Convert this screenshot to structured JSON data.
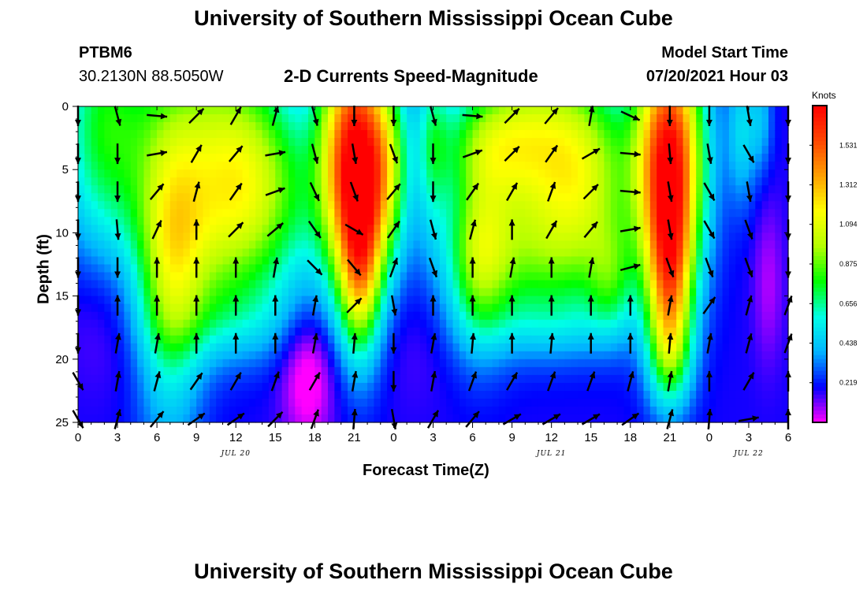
{
  "header": {
    "title": "University of Southern Mississippi Ocean Cube",
    "station": "PTBM6",
    "coords": "30.2130N  88.5050W",
    "subtitle": "2-D Currents Speed-Magnitude",
    "model_label": "Model Start Time",
    "model_time": "07/20/2021 Hour 03"
  },
  "footer": {
    "title": "University of Southern Mississippi Ocean Cube"
  },
  "colors": {
    "scale": [
      "#ff00ff",
      "#0000ff",
      "#00b4ff",
      "#00ffe6",
      "#00ff00",
      "#b4ff00",
      "#ffff00",
      "#ffa000",
      "#ff4600",
      "#ff0000"
    ],
    "arrow": "#000000",
    "background": "#ffffff"
  },
  "chart_data": {
    "type": "heatmap",
    "title": "2-D Currents Speed-Magnitude",
    "xlabel": "Forecast Time(Z)",
    "ylabel": "Depth (ft)",
    "x_hours": [
      0,
      54
    ],
    "x_tick_hours": [
      0,
      3,
      6,
      9,
      12,
      15,
      18,
      21,
      24,
      27,
      30,
      33,
      36,
      39,
      42,
      45,
      48,
      51,
      54
    ],
    "x_tick_labels": [
      "0",
      "3",
      "6",
      "9",
      "12",
      "15",
      "18",
      "21",
      "0",
      "3",
      "6",
      "9",
      "12",
      "15",
      "18",
      "21",
      "0",
      "3",
      "6"
    ],
    "date_labels": [
      {
        "hour": 12,
        "label": "JUL 20"
      },
      {
        "hour": 36,
        "label": "JUL 21"
      },
      {
        "hour": 51,
        "label": "JUL 22"
      }
    ],
    "ylim": [
      0,
      25
    ],
    "y_ticks": [
      0,
      5,
      10,
      15,
      20,
      25
    ],
    "y_tick_labels": [
      "0",
      "5",
      "10",
      "15",
      "20",
      "25"
    ],
    "colorbar": {
      "unit": "Knots",
      "range": [
        0,
        1.75
      ],
      "ticks": [
        0.219,
        0.438,
        0.656,
        0.875,
        1.094,
        1.312,
        1.531
      ],
      "tick_labels": [
        "0.219",
        "0.438",
        "0.656",
        "0.875",
        "1.094",
        "1.312",
        "1.531"
      ]
    },
    "speed_model": {
      "background_knots": 0.18,
      "blobs": [
        {
          "h": 2.0,
          "d": 1.5,
          "sh": 2.5,
          "sd": 7.0,
          "amp": 0.55
        },
        {
          "h": 2.5,
          "d": 16.0,
          "sh": 2.5,
          "sd": 4.0,
          "amp": -0.12
        },
        {
          "h": 7.0,
          "d": 13.0,
          "sh": 1.8,
          "sd": 9.0,
          "amp": 0.55
        },
        {
          "h": 11.0,
          "d": 2.0,
          "sh": 4.0,
          "sd": 5.5,
          "amp": 0.7
        },
        {
          "h": 11.0,
          "d": 11.0,
          "sh": 4.5,
          "sd": 4.5,
          "amp": 0.55
        },
        {
          "h": 14.0,
          "d": 6.0,
          "sh": 3.0,
          "sd": 4.0,
          "amp": 0.25
        },
        {
          "h": 11.0,
          "d": 17.0,
          "sh": 4.5,
          "sd": 2.5,
          "amp": 0.2
        },
        {
          "h": 17.5,
          "d": 21.0,
          "sh": 1.4,
          "sd": 4.0,
          "amp": -0.25
        },
        {
          "h": 21.0,
          "d": 4.0,
          "sh": 1.8,
          "sd": 7.0,
          "amp": 1.5
        },
        {
          "h": 21.5,
          "d": 13.0,
          "sh": 1.1,
          "sd": 5.0,
          "amp": 0.7
        },
        {
          "h": 23.5,
          "d": 5.0,
          "sh": 1.2,
          "sd": 5.0,
          "amp": 0.5
        },
        {
          "h": 27.0,
          "d": 3.0,
          "sh": 0.9,
          "sd": 5.0,
          "amp": 0.35
        },
        {
          "h": 25.5,
          "d": 18.0,
          "sh": 2.0,
          "sd": 4.0,
          "amp": -0.05
        },
        {
          "h": 30.5,
          "d": 12.0,
          "sh": 1.6,
          "sd": 5.0,
          "amp": 0.5
        },
        {
          "h": 31.0,
          "d": 3.0,
          "sh": 2.5,
          "sd": 3.0,
          "amp": 0.3
        },
        {
          "h": 35.0,
          "d": 2.5,
          "sh": 4.0,
          "sd": 5.0,
          "amp": 0.8
        },
        {
          "h": 35.0,
          "d": 12.0,
          "sh": 4.5,
          "sd": 4.0,
          "amp": 0.55
        },
        {
          "h": 36.0,
          "d": 17.5,
          "sh": 4.0,
          "sd": 2.0,
          "amp": 0.15
        },
        {
          "h": 39.0,
          "d": 6.0,
          "sh": 2.5,
          "sd": 5.0,
          "amp": 0.4
        },
        {
          "h": 40.5,
          "d": 14.0,
          "sh": 1.2,
          "sd": 3.0,
          "amp": 0.3
        },
        {
          "h": 45.0,
          "d": 4.0,
          "sh": 1.8,
          "sd": 7.0,
          "amp": 1.5
        },
        {
          "h": 45.0,
          "d": 14.0,
          "sh": 1.2,
          "sd": 5.0,
          "amp": 0.8
        },
        {
          "h": 45.0,
          "d": 20.0,
          "sh": 1.2,
          "sd": 3.0,
          "amp": 0.35
        },
        {
          "h": 50.5,
          "d": 2.0,
          "sh": 0.8,
          "sd": 4.0,
          "amp": 0.3
        },
        {
          "h": 52.5,
          "d": 14.0,
          "sh": 0.8,
          "sd": 4.5,
          "amp": -0.12
        },
        {
          "h": 52.0,
          "d": 1.0,
          "sh": 0.6,
          "sd": 3.0,
          "amp": 0.2
        }
      ]
    },
    "vectors": {
      "hours": [
        0,
        3,
        6,
        9,
        12,
        15,
        18,
        21,
        24,
        27,
        30,
        33,
        36,
        39,
        42,
        45,
        48,
        51,
        54
      ],
      "depths_ft": [
        0,
        3,
        6,
        9,
        12,
        15,
        18,
        21,
        24
      ],
      "direction_deg": [
        [
          180,
          165,
          95,
          45,
          30,
          15,
          165,
          180,
          180,
          165,
          95,
          45,
          40,
          10,
          115,
          180,
          180,
          170,
          180
        ],
        [
          180,
          180,
          80,
          30,
          40,
          80,
          165,
          170,
          160,
          180,
          70,
          45,
          35,
          60,
          95,
          175,
          170,
          150,
          180
        ],
        [
          180,
          180,
          40,
          15,
          35,
          70,
          155,
          160,
          40,
          180,
          35,
          30,
          20,
          45,
          95,
          170,
          150,
          170,
          180
        ],
        [
          180,
          175,
          25,
          0,
          45,
          50,
          145,
          120,
          35,
          165,
          15,
          0,
          30,
          40,
          80,
          170,
          150,
          160,
          180
        ],
        [
          180,
          180,
          0,
          0,
          0,
          10,
          135,
          140,
          20,
          160,
          0,
          10,
          0,
          10,
          75,
          160,
          160,
          160,
          180
        ],
        [
          180,
          0,
          0,
          0,
          0,
          0,
          10,
          45,
          170,
          0,
          0,
          0,
          0,
          0,
          0,
          10,
          35,
          15,
          20
        ],
        [
          180,
          10,
          10,
          0,
          0,
          0,
          10,
          5,
          180,
          10,
          5,
          0,
          5,
          0,
          0,
          5,
          10,
          15,
          20
        ],
        [
          150,
          10,
          15,
          35,
          30,
          20,
          30,
          10,
          180,
          10,
          20,
          30,
          20,
          20,
          15,
          10,
          0,
          30,
          0
        ],
        [
          150,
          15,
          40,
          55,
          55,
          45,
          20,
          5,
          170,
          30,
          40,
          60,
          60,
          60,
          55,
          15,
          5,
          80,
          0
        ]
      ]
    }
  }
}
